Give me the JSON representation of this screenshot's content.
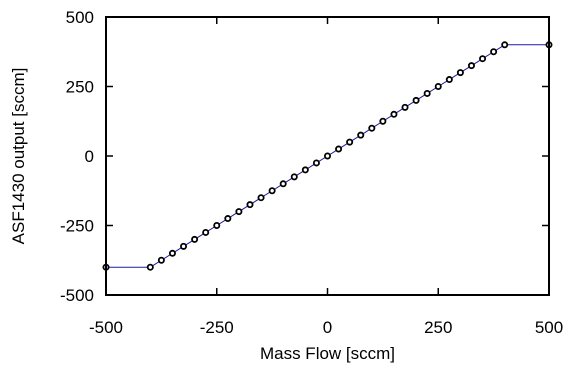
{
  "chart_data": {
    "type": "line",
    "title": "",
    "xlabel": "Mass Flow [sccm]",
    "ylabel": "ASF1430 output [sccm]",
    "xlim": [
      -500,
      500
    ],
    "ylim": [
      -500,
      500
    ],
    "xticks": [
      -500,
      -250,
      0,
      250,
      500
    ],
    "yticks": [
      -500,
      -250,
      0,
      250,
      500
    ],
    "grid": false,
    "legend": "none",
    "series": [
      {
        "line_color": "#1a1aa8",
        "marker": "open-circle",
        "marker_color": "#000000",
        "x": [
          -500,
          -400,
          -375,
          -350,
          -325,
          -300,
          -275,
          -250,
          -225,
          -200,
          -175,
          -150,
          -125,
          -100,
          -75,
          -50,
          -25,
          0,
          25,
          50,
          75,
          100,
          125,
          150,
          175,
          200,
          225,
          250,
          275,
          300,
          325,
          350,
          375,
          400,
          500
        ],
        "y": [
          -400,
          -400,
          -375,
          -350,
          -325,
          -300,
          -275,
          -250,
          -225,
          -200,
          -175,
          -150,
          -125,
          -100,
          -75,
          -50,
          -25,
          0,
          25,
          50,
          75,
          100,
          125,
          150,
          175,
          200,
          225,
          250,
          275,
          300,
          325,
          350,
          375,
          400,
          400
        ]
      }
    ]
  }
}
